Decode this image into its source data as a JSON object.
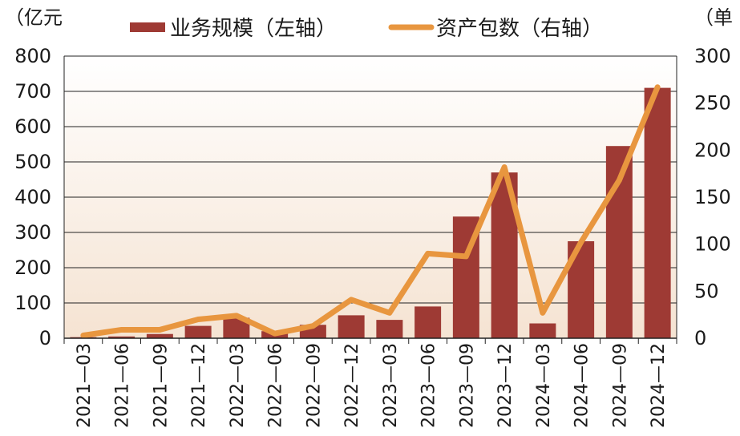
{
  "chart_data": {
    "type": "bar",
    "title": "",
    "legend": [
      {
        "name": "业务规模（左轴）",
        "kind": "bar",
        "color": "#9e3a34"
      },
      {
        "name": "资产包数（右轴）",
        "kind": "line",
        "color": "#e8963f"
      }
    ],
    "left_axis_unit": "（亿元",
    "right_axis_unit": "（单",
    "categories": [
      "2021—03",
      "2021—06",
      "2021—09",
      "2021—12",
      "2022—03",
      "2022—06",
      "2022—09",
      "2022—12",
      "2023—03",
      "2023—06",
      "2023—09",
      "2023—12",
      "2024—03",
      "2024—06",
      "2024—09",
      "2024—12"
    ],
    "series": [
      {
        "name": "业务规模（左轴）",
        "axis": "left",
        "type": "bar",
        "values": [
          3,
          5,
          12,
          35,
          58,
          20,
          38,
          65,
          52,
          90,
          345,
          470,
          42,
          275,
          545,
          710
        ]
      },
      {
        "name": "资产包数（右轴）",
        "axis": "right",
        "type": "line",
        "values": [
          3,
          9,
          9,
          20,
          24,
          5,
          13,
          41,
          27,
          90,
          87,
          182,
          27,
          102,
          168,
          267
        ]
      }
    ],
    "left_ylim": [
      0,
      800
    ],
    "left_ticks": [
      "0",
      "100",
      "200",
      "300",
      "400",
      "500",
      "600",
      "700",
      "800"
    ],
    "right_ylim": [
      0,
      300
    ],
    "right_ticks": [
      "0",
      "50",
      "100",
      "150",
      "200",
      "250",
      "300"
    ],
    "colors": {
      "bar": "#9e3a34",
      "line": "#e8963f",
      "bg_top": "#ffffff",
      "bg_bottom": "#f7e6d7",
      "grid": "#222222"
    }
  }
}
